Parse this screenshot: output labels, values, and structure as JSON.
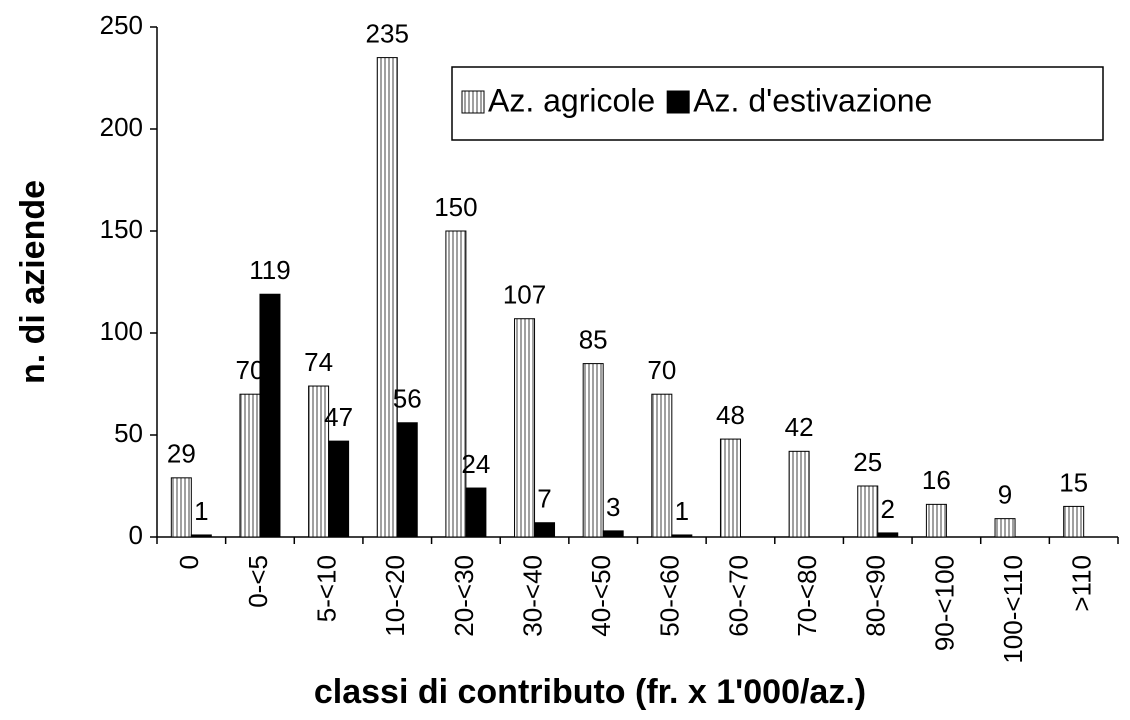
{
  "chart_data": {
    "type": "bar",
    "y_label": "n. di aziende",
    "x_label": "classi di contributo (fr. x 1'000/az.)",
    "categories": [
      "0",
      "0-<5",
      "5-<10",
      "10-<20",
      "20-<30",
      "30-<40",
      "40-<50",
      "50-<60",
      "60-<70",
      "70-<80",
      "80-<90",
      "90-<100",
      "100-<110",
      ">110"
    ],
    "series": [
      {
        "name": "Az. agricole",
        "color": "#808080",
        "pattern": "vertical-hatch",
        "values": [
          29,
          70,
          74,
          235,
          150,
          107,
          85,
          70,
          48,
          42,
          25,
          16,
          9,
          15
        ]
      },
      {
        "name": "Az. d'estivazione",
        "color": "#000000",
        "values": [
          1,
          119,
          47,
          56,
          24,
          7,
          3,
          1,
          null,
          null,
          2,
          null,
          null,
          null
        ]
      }
    ],
    "ylim": [
      0,
      250
    ],
    "yticks": [
      0,
      50,
      100,
      150,
      200,
      250
    ],
    "grid": false,
    "legend": "top-right",
    "data_labels": true
  }
}
